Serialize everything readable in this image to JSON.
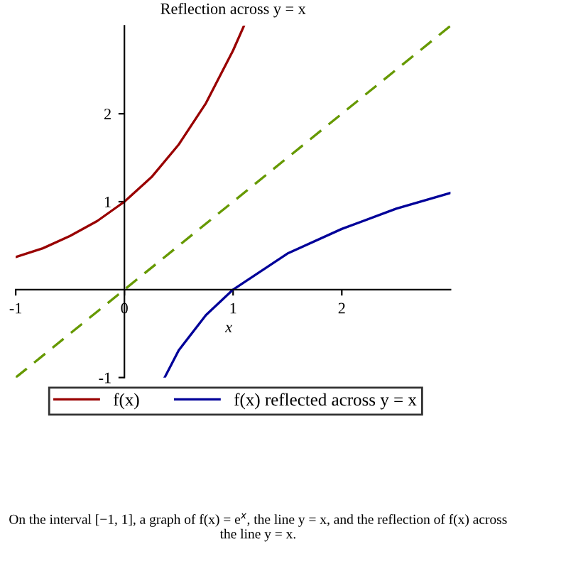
{
  "chart_data": {
    "type": "line",
    "title": "Reflection across y = x",
    "xlabel": "x",
    "xlim": [
      -1,
      3
    ],
    "ylim": [
      -1,
      3
    ],
    "xticks": [
      -1,
      0,
      1,
      2
    ],
    "yticks": [
      -1,
      1,
      2
    ],
    "series": [
      {
        "name": "f(x)",
        "color": "#990000",
        "x": [
          -1,
          -0.75,
          -0.5,
          -0.25,
          0,
          0.25,
          0.5,
          0.75,
          1,
          1.1
        ],
        "values": [
          0.37,
          0.47,
          0.61,
          0.78,
          1,
          1.28,
          1.65,
          2.12,
          2.72,
          3.0
        ]
      },
      {
        "name": "f(x) reflected across y = x",
        "color": "#000099",
        "x": [
          0.37,
          0.5,
          0.75,
          1,
          1.5,
          2,
          2.5,
          3
        ],
        "values": [
          -1,
          -0.69,
          -0.29,
          0,
          0.41,
          0.69,
          0.92,
          1.1
        ]
      },
      {
        "color": "#669900",
        "line_style": "dashed",
        "x": [
          -1,
          3
        ],
        "values": [
          -1,
          3
        ]
      }
    ],
    "legend": "bottom",
    "grid": false,
    "annotations": [
      "On the interval [−1, 1], a graph of f(x) = e$^{x}$, the line y = x, and the reflection of f(x) across the line y = x."
    ]
  }
}
